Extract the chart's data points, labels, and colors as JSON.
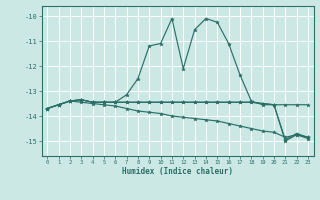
{
  "xlabel": "Humidex (Indice chaleur)",
  "xlim": [
    -0.5,
    23.5
  ],
  "ylim": [
    -15.6,
    -9.6
  ],
  "yticks": [
    -15,
    -14,
    -13,
    -12,
    -11,
    -10
  ],
  "xticks": [
    0,
    1,
    2,
    3,
    4,
    5,
    6,
    7,
    8,
    9,
    10,
    11,
    12,
    13,
    14,
    15,
    16,
    17,
    18,
    19,
    20,
    21,
    22,
    23
  ],
  "bg_color": "#cce8e5",
  "grid_color": "#ffffff",
  "line_color": "#2a7068",
  "lines": [
    {
      "x": [
        0,
        1,
        2,
        3,
        4,
        5,
        6,
        7,
        8,
        9,
        10,
        11,
        12,
        13,
        14,
        15,
        16,
        17,
        18,
        19,
        20,
        21,
        22,
        23
      ],
      "y": [
        -13.7,
        -13.55,
        -13.4,
        -13.35,
        -13.45,
        -13.45,
        -13.45,
        -13.15,
        -12.5,
        -11.2,
        -11.1,
        -10.1,
        -12.1,
        -10.55,
        -10.1,
        -10.25,
        -11.1,
        -12.35,
        -13.4,
        -13.55,
        -13.55,
        -14.95,
        -14.7,
        -14.85
      ]
    },
    {
      "x": [
        0,
        1,
        2,
        3,
        4,
        5,
        6,
        7,
        8,
        9,
        10,
        11,
        12,
        13,
        14,
        15,
        16,
        17,
        18,
        19,
        20,
        21,
        22,
        23
      ],
      "y": [
        -13.7,
        -13.55,
        -13.4,
        -13.35,
        -13.45,
        -13.45,
        -13.45,
        -13.45,
        -13.45,
        -13.45,
        -13.45,
        -13.45,
        -13.45,
        -13.45,
        -13.45,
        -13.45,
        -13.45,
        -13.45,
        -13.45,
        -13.5,
        -13.55,
        -13.55,
        -13.55,
        -13.55
      ]
    },
    {
      "x": [
        0,
        1,
        2,
        3,
        4,
        5,
        6,
        7,
        8,
        9,
        10,
        11,
        12,
        13,
        14,
        15,
        16,
        17,
        18,
        19,
        20,
        21,
        22,
        23
      ],
      "y": [
        -13.7,
        -13.55,
        -13.4,
        -13.45,
        -13.5,
        -13.55,
        -13.6,
        -13.7,
        -13.8,
        -13.85,
        -13.9,
        -14.0,
        -14.05,
        -14.1,
        -14.15,
        -14.2,
        -14.3,
        -14.4,
        -14.5,
        -14.6,
        -14.65,
        -14.85,
        -14.75,
        -14.85
      ]
    },
    {
      "x": [
        0,
        1,
        2,
        3,
        4,
        5,
        6,
        7,
        8,
        9,
        10,
        11,
        12,
        13,
        14,
        15,
        16,
        17,
        18,
        19,
        20,
        21,
        22,
        23
      ],
      "y": [
        -13.7,
        -13.55,
        -13.4,
        -13.35,
        -13.45,
        -13.45,
        -13.45,
        -13.45,
        -13.45,
        -13.45,
        -13.45,
        -13.45,
        -13.45,
        -13.45,
        -13.45,
        -13.45,
        -13.45,
        -13.45,
        -13.45,
        -13.5,
        -13.55,
        -15.0,
        -14.75,
        -14.9
      ]
    }
  ]
}
